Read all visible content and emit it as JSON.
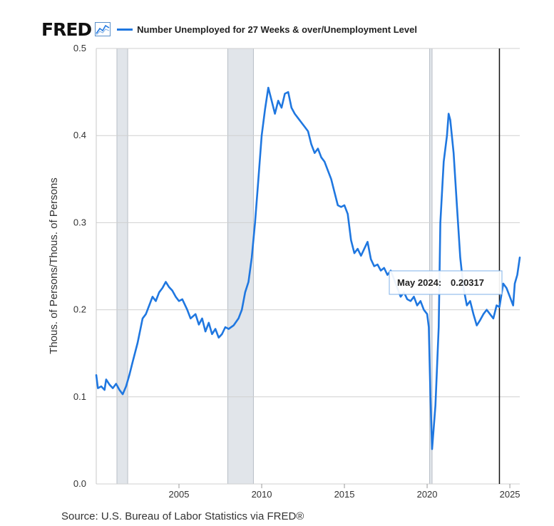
{
  "logo": {
    "text": "FRED",
    "icon": "line-chart-icon"
  },
  "chart_data": {
    "type": "line",
    "title": "",
    "xlabel": "",
    "ylabel": "Thous. of Persons/Thous. of Persons",
    "series": [
      {
        "name": "Number Unemployed for 27 Weeks & over/Unemployment Level",
        "color": "#1f77e0",
        "points": [
          [
            2000.0,
            0.125
          ],
          [
            2000.1,
            0.11
          ],
          [
            2000.3,
            0.112
          ],
          [
            2000.5,
            0.108
          ],
          [
            2000.6,
            0.12
          ],
          [
            2000.8,
            0.114
          ],
          [
            2001.0,
            0.11
          ],
          [
            2001.2,
            0.115
          ],
          [
            2001.4,
            0.108
          ],
          [
            2001.6,
            0.103
          ],
          [
            2001.8,
            0.112
          ],
          [
            2002.0,
            0.125
          ],
          [
            2002.2,
            0.14
          ],
          [
            2002.5,
            0.162
          ],
          [
            2002.8,
            0.19
          ],
          [
            2003.0,
            0.195
          ],
          [
            2003.2,
            0.205
          ],
          [
            2003.4,
            0.215
          ],
          [
            2003.6,
            0.21
          ],
          [
            2003.8,
            0.22
          ],
          [
            2004.0,
            0.225
          ],
          [
            2004.2,
            0.232
          ],
          [
            2004.4,
            0.226
          ],
          [
            2004.6,
            0.222
          ],
          [
            2004.8,
            0.215
          ],
          [
            2005.0,
            0.21
          ],
          [
            2005.2,
            0.212
          ],
          [
            2005.5,
            0.2
          ],
          [
            2005.7,
            0.19
          ],
          [
            2006.0,
            0.195
          ],
          [
            2006.2,
            0.183
          ],
          [
            2006.4,
            0.19
          ],
          [
            2006.6,
            0.175
          ],
          [
            2006.8,
            0.185
          ],
          [
            2007.0,
            0.172
          ],
          [
            2007.2,
            0.178
          ],
          [
            2007.4,
            0.168
          ],
          [
            2007.6,
            0.172
          ],
          [
            2007.8,
            0.18
          ],
          [
            2008.0,
            0.178
          ],
          [
            2008.3,
            0.182
          ],
          [
            2008.6,
            0.19
          ],
          [
            2008.8,
            0.2
          ],
          [
            2009.0,
            0.22
          ],
          [
            2009.2,
            0.232
          ],
          [
            2009.4,
            0.26
          ],
          [
            2009.6,
            0.3
          ],
          [
            2009.8,
            0.35
          ],
          [
            2010.0,
            0.4
          ],
          [
            2010.2,
            0.43
          ],
          [
            2010.4,
            0.455
          ],
          [
            2010.6,
            0.44
          ],
          [
            2010.8,
            0.425
          ],
          [
            2011.0,
            0.44
          ],
          [
            2011.2,
            0.432
          ],
          [
            2011.4,
            0.448
          ],
          [
            2011.6,
            0.45
          ],
          [
            2011.8,
            0.432
          ],
          [
            2012.0,
            0.425
          ],
          [
            2012.2,
            0.42
          ],
          [
            2012.4,
            0.415
          ],
          [
            2012.6,
            0.41
          ],
          [
            2012.8,
            0.405
          ],
          [
            2013.0,
            0.39
          ],
          [
            2013.2,
            0.38
          ],
          [
            2013.4,
            0.385
          ],
          [
            2013.6,
            0.375
          ],
          [
            2013.8,
            0.37
          ],
          [
            2014.0,
            0.36
          ],
          [
            2014.2,
            0.35
          ],
          [
            2014.4,
            0.335
          ],
          [
            2014.6,
            0.32
          ],
          [
            2014.8,
            0.318
          ],
          [
            2015.0,
            0.32
          ],
          [
            2015.2,
            0.31
          ],
          [
            2015.4,
            0.28
          ],
          [
            2015.6,
            0.265
          ],
          [
            2015.8,
            0.27
          ],
          [
            2016.0,
            0.262
          ],
          [
            2016.2,
            0.27
          ],
          [
            2016.4,
            0.278
          ],
          [
            2016.6,
            0.258
          ],
          [
            2016.8,
            0.25
          ],
          [
            2017.0,
            0.252
          ],
          [
            2017.2,
            0.245
          ],
          [
            2017.4,
            0.248
          ],
          [
            2017.6,
            0.24
          ],
          [
            2017.8,
            0.245
          ],
          [
            2018.0,
            0.235
          ],
          [
            2018.2,
            0.225
          ],
          [
            2018.4,
            0.215
          ],
          [
            2018.6,
            0.22
          ],
          [
            2018.8,
            0.212
          ],
          [
            2019.0,
            0.21
          ],
          [
            2019.2,
            0.215
          ],
          [
            2019.4,
            0.205
          ],
          [
            2019.6,
            0.21
          ],
          [
            2019.8,
            0.2
          ],
          [
            2020.0,
            0.195
          ],
          [
            2020.1,
            0.18
          ],
          [
            2020.2,
            0.1
          ],
          [
            2020.3,
            0.04
          ],
          [
            2020.5,
            0.09
          ],
          [
            2020.7,
            0.18
          ],
          [
            2020.8,
            0.3
          ],
          [
            2021.0,
            0.37
          ],
          [
            2021.2,
            0.4
          ],
          [
            2021.3,
            0.425
          ],
          [
            2021.4,
            0.418
          ],
          [
            2021.6,
            0.38
          ],
          [
            2021.8,
            0.32
          ],
          [
            2022.0,
            0.26
          ],
          [
            2022.2,
            0.225
          ],
          [
            2022.4,
            0.205
          ],
          [
            2022.6,
            0.21
          ],
          [
            2022.8,
            0.195
          ],
          [
            2023.0,
            0.182
          ],
          [
            2023.2,
            0.188
          ],
          [
            2023.4,
            0.195
          ],
          [
            2023.6,
            0.2
          ],
          [
            2023.8,
            0.195
          ],
          [
            2024.0,
            0.19
          ],
          [
            2024.2,
            0.205
          ],
          [
            2024.37,
            0.20317
          ],
          [
            2024.6,
            0.23
          ],
          [
            2024.8,
            0.225
          ],
          [
            2025.0,
            0.215
          ],
          [
            2025.2,
            0.205
          ],
          [
            2025.3,
            0.23
          ],
          [
            2025.45,
            0.24
          ],
          [
            2025.6,
            0.26
          ]
        ]
      }
    ],
    "xlim": [
      2000.0,
      2025.6
    ],
    "ylim": [
      0.0,
      0.5
    ],
    "x_ticks": [
      2005,
      2010,
      2015,
      2020,
      2025
    ],
    "y_ticks": [
      0.0,
      0.1,
      0.2,
      0.3,
      0.4,
      0.5
    ],
    "y_tick_labels": [
      "0.0",
      "0.1",
      "0.2",
      "0.3",
      "0.4",
      "0.5"
    ],
    "recessions": [
      [
        2001.25,
        2001.9
      ],
      [
        2007.95,
        2009.5
      ],
      [
        2020.15,
        2020.3
      ]
    ],
    "highlight_x": 2024.37,
    "grid": true,
    "tooltip": {
      "date": "May 2024:",
      "value": "0.20317"
    }
  },
  "source": "Source: U.S. Bureau of Labor Statistics via FRED®"
}
